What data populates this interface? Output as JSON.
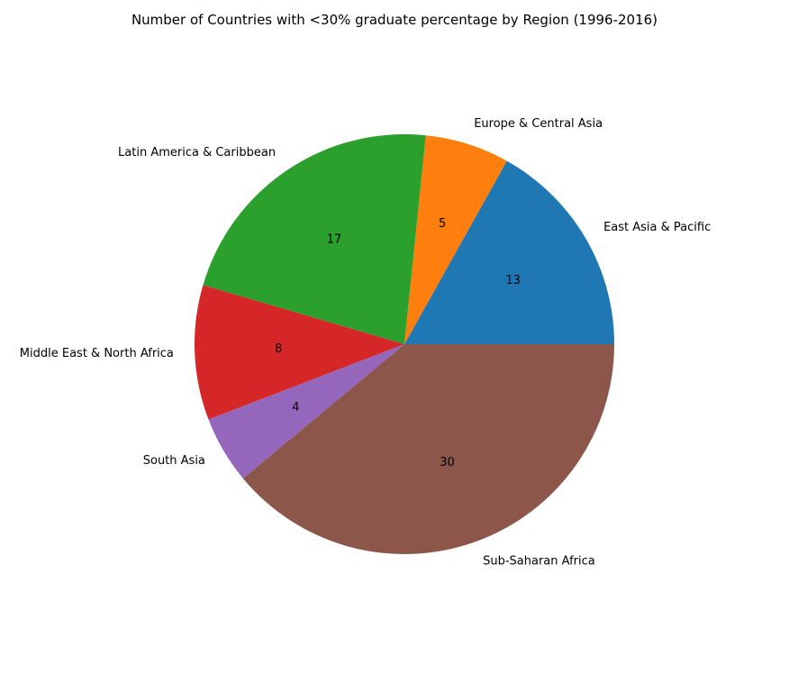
{
  "chart_data": {
    "type": "pie",
    "title": "Number of Countries with <30% graduate percentage by Region (1996-2016)",
    "start_angle_deg": 0,
    "direction": "counterclockwise",
    "slices": [
      {
        "label": "East Asia & Pacific",
        "value": 13,
        "color": "#1f77b4"
      },
      {
        "label": "Europe & Central Asia",
        "value": 5,
        "color": "#ff7f0e"
      },
      {
        "label": "Latin America & Caribbean",
        "value": 17,
        "color": "#2ca02c"
      },
      {
        "label": "Middle East & North Africa",
        "value": 8,
        "color": "#d62728"
      },
      {
        "label": "South Asia",
        "value": 4,
        "color": "#9467bd"
      },
      {
        "label": "Sub-Saharan Africa",
        "value": 30,
        "color": "#8c564b"
      }
    ]
  }
}
